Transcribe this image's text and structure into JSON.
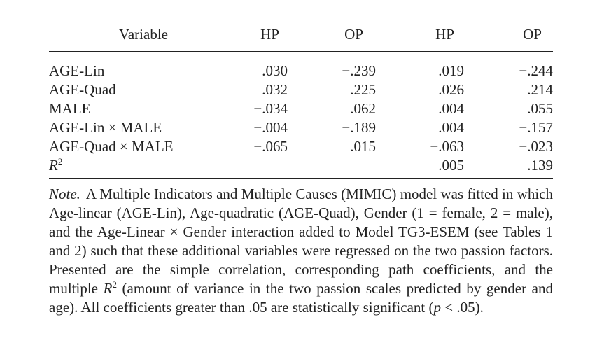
{
  "table": {
    "headers": [
      "Variable",
      "HP",
      "OP",
      "HP",
      "OP"
    ],
    "rows": [
      {
        "variable": "AGE-Lin",
        "hp1": ".030",
        "op1": "−.239",
        "hp2": ".019",
        "op2": "−.244"
      },
      {
        "variable": "AGE-Quad",
        "hp1": ".032",
        "op1": ".225",
        "hp2": ".026",
        "op2": ".214"
      },
      {
        "variable": "MALE",
        "hp1": "−.034",
        "op1": ".062",
        "hp2": ".004",
        "op2": ".055"
      },
      {
        "variable": "AGE-Lin × MALE",
        "hp1": "−.004",
        "op1": "−.189",
        "hp2": ".004",
        "op2": "−.157"
      },
      {
        "variable": "AGE-Quad × MALE",
        "hp1": "−.065",
        "op1": ".015",
        "hp2": "−.063",
        "op2": "−.023"
      }
    ],
    "r2_row": {
      "variable_letter": "R",
      "variable_sup": "2",
      "hp1": "",
      "op1": "",
      "hp2": ".005",
      "op2": ".139"
    }
  },
  "note": {
    "label": "Note.",
    "text_part1": "A Multiple Indicators and Multiple Causes (MIMIC) model was fitted in which Age-linear (AGE-Lin), Age-quadratic (AGE-Quad), Gender (1 = female, 2 = male), and the Age-Linear × Gender interaction added to Model TG3-ESEM (see Tables 1 and 2) such that these additional variables were regressed on the two passion factors. Presented are the simple correlation, corresponding path coefficients, and the multiple ",
    "r_letter": "R",
    "r_sup": "2",
    "text_part2": " (amount of variance in the two passion scales predicted by gender and age). All coefficients greater than .05 are statistically significant (",
    "p_letter": "p",
    "text_part3": " < .05)."
  }
}
